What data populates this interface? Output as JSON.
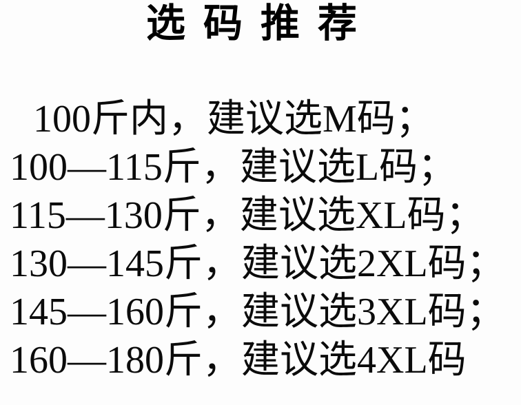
{
  "page": {
    "background_color": "#fdfdfd",
    "text_color": "#0b0b0b"
  },
  "title": "选码推荐",
  "recommendations": {
    "lines": [
      "100斤内，建议选M码；",
      "100—115斤，建议选L码；",
      "115—130斤，建议选XL码；",
      "130—145斤，建议选2XL码；",
      "145—160斤，建议选3XL码；",
      "160—180斤，建议选4XL码"
    ],
    "entries": [
      {
        "weight_range": "100斤内",
        "size": "M"
      },
      {
        "weight_range": "100—115斤",
        "size": "L"
      },
      {
        "weight_range": "115—130斤",
        "size": "XL"
      },
      {
        "weight_range": "130—145斤",
        "size": "2XL"
      },
      {
        "weight_range": "145—160斤",
        "size": "3XL"
      },
      {
        "weight_range": "160—180斤",
        "size": "4XL"
      }
    ]
  }
}
